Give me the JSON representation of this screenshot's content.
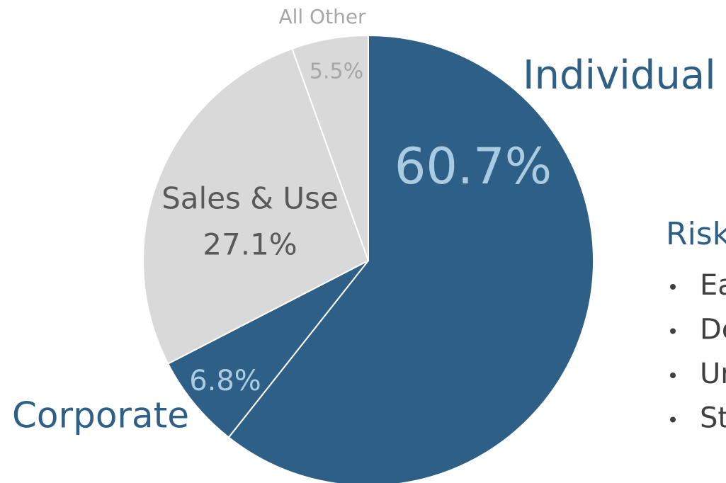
{
  "chart_data": {
    "type": "pie",
    "categories": [
      "Individual",
      "Corporate",
      "Sales & Use",
      "All Other"
    ],
    "values": [
      60.7,
      6.8,
      27.1,
      5.5
    ],
    "value_labels": [
      "60.7%",
      "6.8%",
      "27.1%",
      "5.5%"
    ],
    "colors": [
      "#2e5f86",
      "#2e5f86",
      "#d9d9d9",
      "#d9d9d9"
    ]
  },
  "side_panel": {
    "heading": "Risk",
    "bullets": [
      "Ea",
      "De",
      "Un",
      "St"
    ]
  }
}
